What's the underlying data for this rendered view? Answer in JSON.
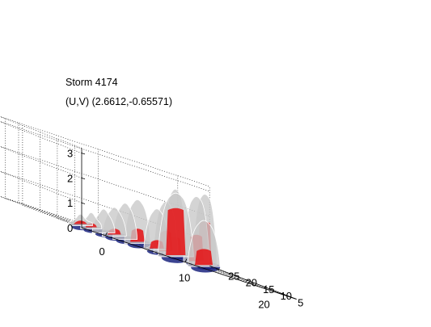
{
  "chart_data": {
    "type": "surface3d",
    "title_lines": [
      "Storm 4174",
      "(U,V) (2.6612,-0.65571)"
    ],
    "x_ticks": [
      "0",
      "10",
      "20"
    ],
    "y_ticks": [
      "5",
      "10",
      "15",
      "20",
      "25"
    ],
    "z_ticks": [
      "0",
      "1",
      "2",
      "3"
    ],
    "xlim": [
      -3,
      24
    ],
    "ylim": [
      3,
      28
    ],
    "zlim": [
      0,
      3.2
    ],
    "grid": true,
    "surfaces": [
      {
        "color": "#c8c8c8",
        "role": "reflectivity isosurface (grey, translucent)"
      },
      {
        "color": "#e31a1c",
        "role": "updraft isosurface (red)"
      },
      {
        "color": "#1a237e",
        "role": "ground-level reflectivity (dark blue)"
      }
    ],
    "blobs": [
      {
        "x": 1.0,
        "y": 12.5,
        "h": 0.4,
        "w": 1.5,
        "red": 0.3
      },
      {
        "x": 3.0,
        "y": 14.0,
        "h": 0.6,
        "w": 1.3,
        "red": 0.25
      },
      {
        "x": 5.0,
        "y": 15.0,
        "h": 0.9,
        "w": 1.4,
        "red": 0
      },
      {
        "x": 7.0,
        "y": 16.5,
        "h": 1.1,
        "w": 1.5,
        "red": 0.2
      },
      {
        "x": 9.0,
        "y": 18.0,
        "h": 1.4,
        "w": 1.5,
        "red": 0
      },
      {
        "x": 11.0,
        "y": 19.0,
        "h": 1.7,
        "w": 1.6,
        "red": 0.3
      },
      {
        "x": 13.0,
        "y": 18.0,
        "h": 1.6,
        "w": 1.6,
        "red": 0.2
      },
      {
        "x": 14.5,
        "y": 16.0,
        "h": 2.5,
        "w": 2.2,
        "red": 0.75
      },
      {
        "x": 16.5,
        "y": 12.5,
        "h": 1.8,
        "w": 2.0,
        "red": 0.35
      },
      {
        "x": 15.0,
        "y": 20.0,
        "h": 2.0,
        "w": 1.5,
        "red": 0.4
      },
      {
        "x": 17.5,
        "y": 23.0,
        "h": 2.6,
        "w": 1.4,
        "red": 0.25
      },
      {
        "x": 19.5,
        "y": 21.5,
        "h": 2.6,
        "w": 1.6,
        "red": 0.4
      },
      {
        "x": 21.0,
        "y": 22.5,
        "h": 2.8,
        "w": 1.5,
        "red": 0.6
      }
    ]
  }
}
